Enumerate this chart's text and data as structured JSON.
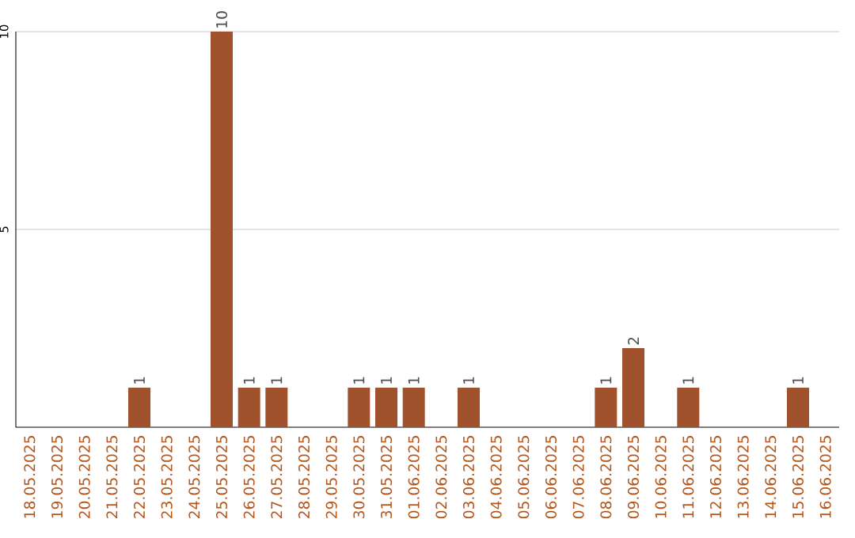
{
  "chart_data": {
    "type": "bar",
    "categories": [
      "18.05.2025",
      "19.05.2025",
      "20.05.2025",
      "21.05.2025",
      "22.05.2025",
      "23.05.2025",
      "24.05.2025",
      "25.05.2025",
      "26.05.2025",
      "27.05.2025",
      "28.05.2025",
      "29.05.2025",
      "30.05.2025",
      "31.05.2025",
      "01.06.2025",
      "02.06.2025",
      "03.06.2025",
      "04.06.2025",
      "05.06.2025",
      "06.06.2025",
      "07.06.2025",
      "08.06.2025",
      "09.06.2025",
      "10.06.2025",
      "11.06.2025",
      "12.06.2025",
      "13.06.2025",
      "14.06.2025",
      "15.06.2025",
      "16.06.2025"
    ],
    "values": [
      0,
      0,
      0,
      0,
      1,
      0,
      0,
      10,
      1,
      1,
      0,
      0,
      1,
      1,
      1,
      0,
      1,
      0,
      0,
      0,
      0,
      1,
      2,
      0,
      1,
      0,
      0,
      0,
      1,
      0
    ],
    "value_labels": [
      null,
      null,
      null,
      null,
      "1",
      null,
      null,
      "10",
      "1",
      "1",
      null,
      null,
      "1",
      "1",
      "1",
      null,
      "1",
      null,
      null,
      null,
      null,
      "1",
      "2",
      null,
      "1",
      null,
      null,
      null,
      "1",
      null
    ],
    "color": "#a0522d",
    "ylim": [
      0,
      10
    ],
    "yticks": [
      5,
      10
    ],
    "grid": "y"
  }
}
